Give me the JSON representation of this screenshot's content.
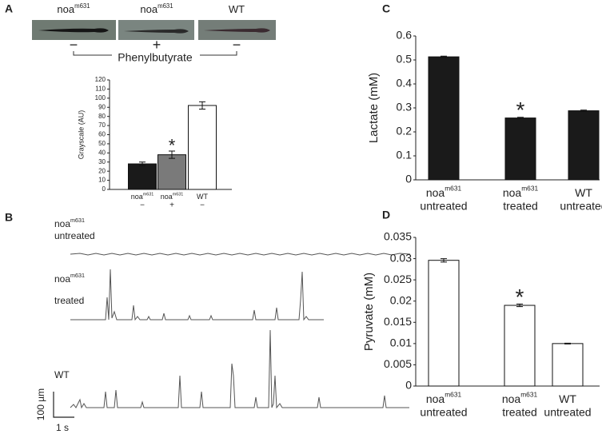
{
  "panel_a_images": {
    "panel_label": "A",
    "groups": [
      {
        "name": "noa",
        "superscript": "m631",
        "treatment": "−"
      },
      {
        "name": "noa",
        "superscript": "m631",
        "treatment": "+"
      },
      {
        "name": "WT",
        "treatment": "−"
      }
    ],
    "drug": "Phenylbutyrate"
  },
  "panel_b": {
    "panel_label": "B",
    "traces": [
      {
        "name": "noa",
        "superscript": "m631",
        "condition": "untreated"
      },
      {
        "name": "noa",
        "superscript": "m631",
        "condition": "treated"
      },
      {
        "name": "WT"
      }
    ],
    "scale_y": "100 µm",
    "scale_x": "1 s"
  },
  "chart_data": [
    {
      "type": "bar",
      "ylabel": "Grayscale (AU)",
      "categories": [
        "noa",
        "noa",
        "WT"
      ],
      "category_superscripts": [
        "m631",
        "m631",
        null
      ],
      "category_sublabels": [
        "−",
        "+",
        "−"
      ],
      "values": [
        28,
        38,
        92
      ],
      "errors": [
        2,
        4,
        4
      ],
      "colors": [
        "#1a1a1a",
        "#7a7a7a",
        "#ffffff"
      ],
      "ylim": [
        0,
        120
      ],
      "yticks": [
        0,
        10,
        20,
        30,
        40,
        50,
        60,
        70,
        80,
        90,
        100,
        110,
        120
      ],
      "annotations": [
        {
          "text": "*",
          "index": 1
        }
      ]
    },
    {
      "type": "bar",
      "panel_label": "C",
      "ylabel": "Lactate (mM)",
      "categories": [
        "noa",
        "noa",
        "WT"
      ],
      "category_superscripts": [
        "m631",
        "m631",
        null
      ],
      "category_sublabels": [
        "untreated",
        "treated",
        "untreated"
      ],
      "values": [
        0.513,
        0.258,
        0.288
      ],
      "errors": [
        0.003,
        0.003,
        0.003
      ],
      "colors": [
        "#1a1a1a",
        "#1a1a1a",
        "#1a1a1a"
      ],
      "ylim": [
        0,
        0.6
      ],
      "yticks": [
        0,
        0.1,
        0.2,
        0.3,
        0.4,
        0.5,
        0.6
      ],
      "annotations": [
        {
          "text": "*",
          "index": 1
        }
      ]
    },
    {
      "type": "bar",
      "panel_label": "D",
      "ylabel": "Pyruvate (mM)",
      "categories": [
        "noa",
        "noa",
        "WT"
      ],
      "category_superscripts": [
        "m631",
        "m631",
        null
      ],
      "category_sublabels": [
        "untreated",
        "treated",
        "untreated"
      ],
      "values": [
        0.0296,
        0.019,
        0.01
      ],
      "errors": [
        0.0004,
        0.0003,
        0.0001
      ],
      "colors": [
        "#ffffff",
        "#ffffff",
        "#ffffff"
      ],
      "ylim": [
        0,
        0.035
      ],
      "yticks": [
        0,
        0.005,
        0.01,
        0.015,
        0.02,
        0.025,
        0.03,
        0.035
      ],
      "annotations": [
        {
          "text": "*",
          "index": 1
        }
      ]
    }
  ]
}
